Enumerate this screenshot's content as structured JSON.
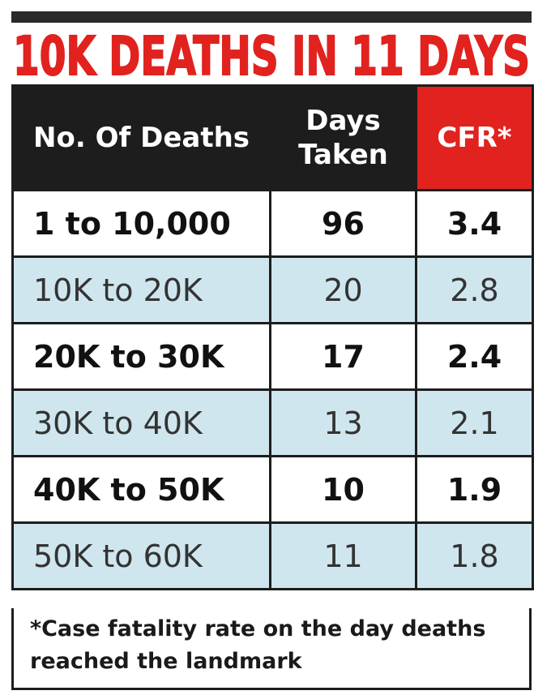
{
  "header": {
    "title": "10K DEATHS IN 11 DAYS"
  },
  "table": {
    "columns": [
      "No. Of Deaths",
      "Days Taken",
      "CFR*"
    ],
    "rows": [
      [
        "1 to 10,000",
        96,
        3.4
      ],
      [
        "10K to 20K",
        20,
        2.8
      ],
      [
        "20K to 30K",
        17,
        2.4
      ],
      [
        "30K to 40K",
        13,
        2.1
      ],
      [
        "40K to 50K",
        10,
        1.9
      ],
      [
        "50K to 60K",
        11,
        1.8
      ]
    ]
  },
  "footnote": "*Case fatality rate on the day deaths reached the landmark"
}
